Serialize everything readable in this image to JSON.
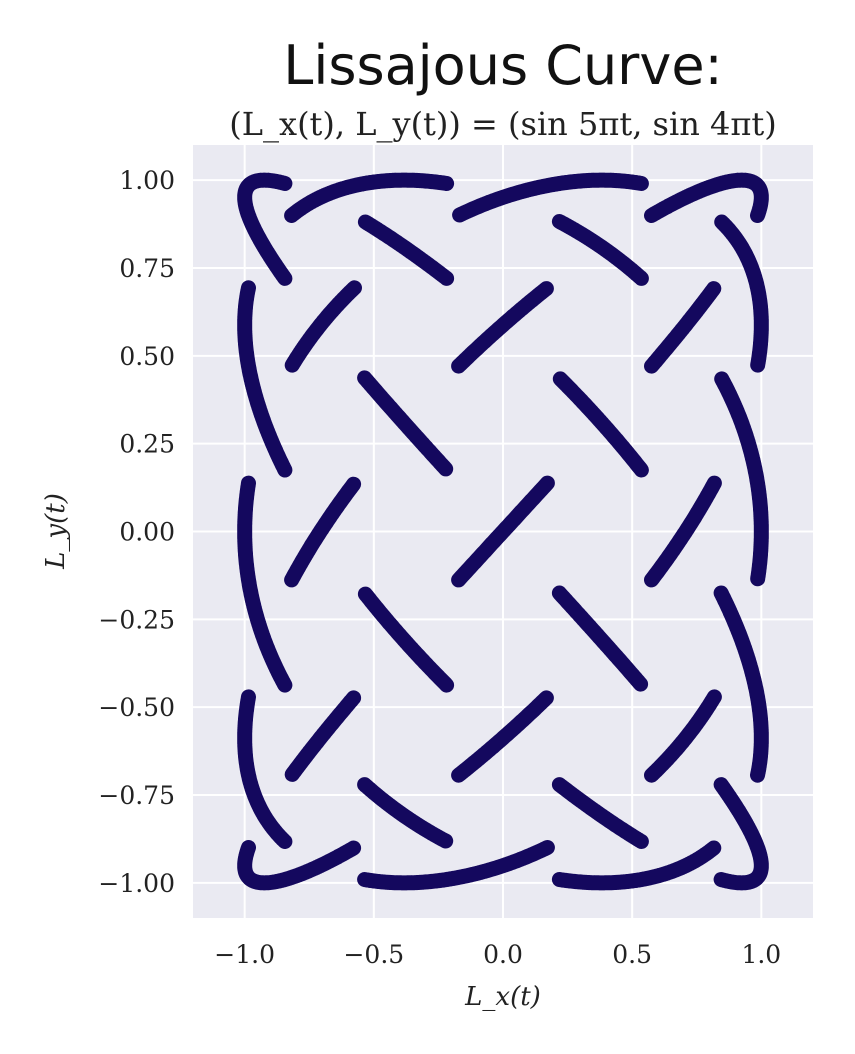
{
  "chart_data": {
    "type": "line",
    "title": "Lissajous Curve:",
    "subtitle": "(L_x(t), L_y(t)) = (sin 5πt,  sin 4πt)",
    "xlabel": "L_x(t)",
    "ylabel": "L_y(t)",
    "xlim": [
      -1.2,
      1.2
    ],
    "ylim": [
      -1.1,
      1.1
    ],
    "xticks": [
      -1.0,
      -0.5,
      0.0,
      0.5,
      1.0
    ],
    "xtick_labels": [
      "−1.0",
      "−0.5",
      "0.0",
      "0.5",
      "1.0"
    ],
    "yticks": [
      1.0,
      0.75,
      0.5,
      0.25,
      0.0,
      -0.25,
      -0.5,
      -0.75,
      -1.0
    ],
    "ytick_labels": [
      "1.00",
      "0.75",
      "0.50",
      "0.25",
      "0.00",
      "−0.25",
      "−0.50",
      "−0.75",
      "−1.00"
    ],
    "grid": true,
    "series": [
      {
        "x_function": "sin(5πt)",
        "y_function": "sin(4πt)",
        "t_range": [
          0,
          2
        ],
        "color": "#14085e",
        "style": "knot-weave"
      }
    ]
  },
  "colors": {
    "plot_background": "#eaeaf2",
    "grid": "#ffffff",
    "curve": "#14085e"
  }
}
